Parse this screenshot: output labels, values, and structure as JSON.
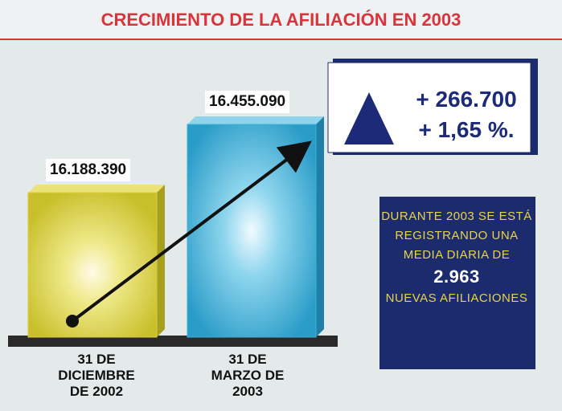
{
  "chart_data": {
    "type": "bar",
    "title": "CRECIMIENTO DE LA AFILIACIÓN EN 2003",
    "categories": [
      "31 DE DICIEMBRE DE 2002",
      "31 DE MARZO DE 2003"
    ],
    "values": [
      16188390,
      16455090
    ],
    "value_labels": [
      "16.188.390",
      "16.455.090"
    ],
    "colors": [
      "#d9cf3a",
      "#3fb0d6"
    ],
    "annotations": {
      "increase": "+ 266.700",
      "percent": "+ 1,65 %."
    },
    "note": {
      "text": "DURANTE 2003 SE ESTÁ REGISTRANDO UNA MEDIA DIARIA DE",
      "figure": "2.963",
      "unit": "NUEVAS AFILIACIONES"
    }
  }
}
